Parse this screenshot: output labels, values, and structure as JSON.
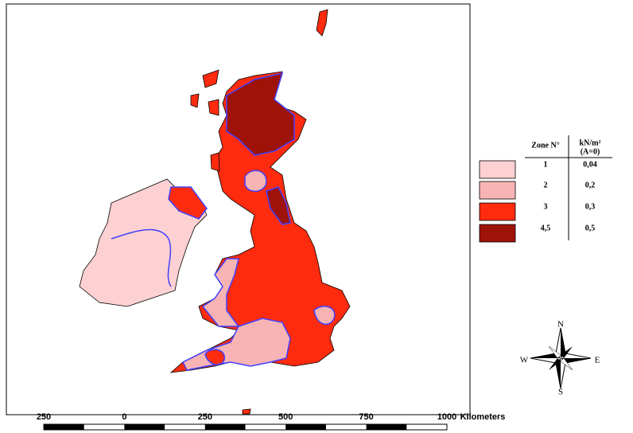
{
  "legend": {
    "headers": [
      "Zone N°",
      "kN/m²",
      "(A=0)"
    ],
    "rows": [
      {
        "zone": "1",
        "value": "0,04",
        "color": "#fdd1d1"
      },
      {
        "zone": "2",
        "value": "0,2",
        "color": "#f8b4b4"
      },
      {
        "zone": "3",
        "value": "0,3",
        "color": "#fe2b0f"
      },
      {
        "zone": "4,5",
        "value": "0,5",
        "color": "#9e1208"
      }
    ]
  },
  "compass": {
    "north": "N",
    "east": "E",
    "south": "S",
    "west": "W"
  },
  "scale": {
    "labels": [
      "250",
      "0",
      "250",
      "500",
      "750",
      "1000"
    ],
    "unit": "Kilometers"
  }
}
